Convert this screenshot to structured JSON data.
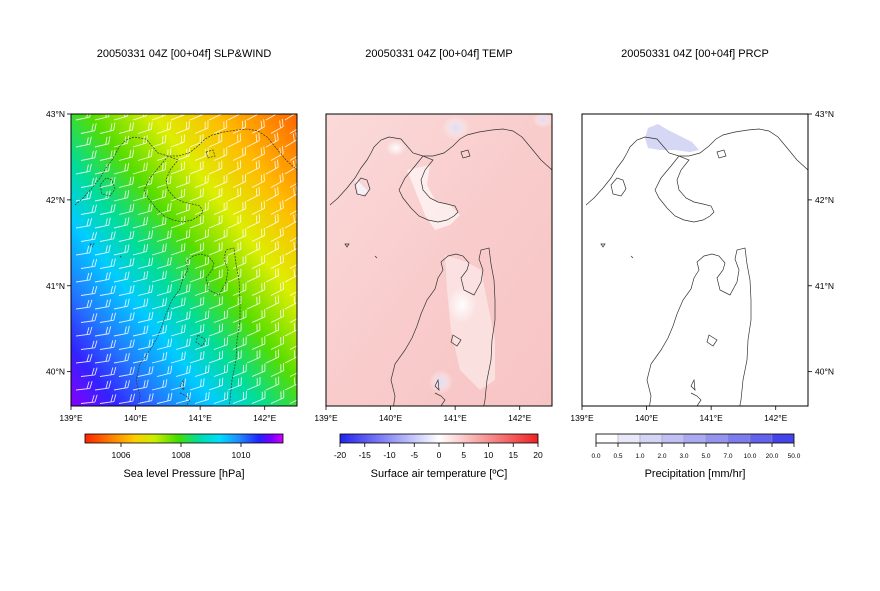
{
  "chart_data": [
    {
      "type": "heatmap",
      "title": "20050331 04Z [00+04f] SLP&WIND",
      "x_ticks": [
        "139°E",
        "140°E",
        "141°E",
        "142°E"
      ],
      "y_ticks": [
        "43°N",
        "42°N",
        "41°N",
        "40°N"
      ],
      "xlim": [
        139,
        142.5
      ],
      "ylim": [
        39.6,
        43
      ],
      "overlay": "wind barbs (white)",
      "colorbar": {
        "label": "Sea level Pressure [hPa]",
        "ticks": [
          "1006",
          "1008",
          "1010"
        ],
        "range": [
          1004.8,
          1011.4
        ],
        "colors": [
          "#ff2200",
          "#ff7700",
          "#ffcc00",
          "#ccee00",
          "#44dd00",
          "#00ddaa",
          "#00ddff",
          "#2288ff",
          "#2222ff",
          "#7700ff",
          "#cc00ff"
        ]
      },
      "field_summary": {
        "northeast_hPa": 1005,
        "center_hPa": 1007.5,
        "southwest_hPa": 1010.5
      }
    },
    {
      "type": "heatmap",
      "title": "20050331 04Z [00+04f] TEMP",
      "x_ticks": [
        "139°E",
        "140°E",
        "141°E",
        "142°E"
      ],
      "xlim": [
        139,
        142.5
      ],
      "ylim": [
        39.6,
        43
      ],
      "colorbar": {
        "label": "Surface air temperature [ºC]",
        "ticks": [
          "-20",
          "-15",
          "-10",
          "-5",
          "0",
          "5",
          "10",
          "15",
          "20"
        ],
        "range": [
          -20,
          20
        ],
        "colors": [
          "#2222ee",
          "#ffffff",
          "#ee2222"
        ]
      },
      "field_summary": {
        "typical_C": 5,
        "coldest_C": 1,
        "warmest_C": 8
      }
    },
    {
      "type": "heatmap",
      "title": "20050331 04Z [00+04f] PRCP",
      "x_ticks": [
        "139°E",
        "140°E",
        "141°E",
        "142°E"
      ],
      "y_ticks": [
        "43°N",
        "42°N",
        "41°N",
        "40°N"
      ],
      "xlim": [
        139,
        142.5
      ],
      "ylim": [
        39.6,
        43
      ],
      "colorbar": {
        "label": "Precipitation [mm/hr]",
        "ticks": [
          "0.0",
          "0.5",
          "1.0",
          "2.0",
          "3.0",
          "5.0",
          "7.0",
          "10.0",
          "20.0",
          "50.0"
        ],
        "colors": [
          "#ffffff",
          "#e8e8f8",
          "#d4d4f6",
          "#c0c0f4",
          "#aaaaf2",
          "#9494f0",
          "#7c7cee",
          "#6262ec",
          "#4444ea"
        ]
      },
      "field_summary": {
        "max_mm_hr": 0.5,
        "area": "north coast near 140.3°E 42.7°N"
      }
    }
  ]
}
